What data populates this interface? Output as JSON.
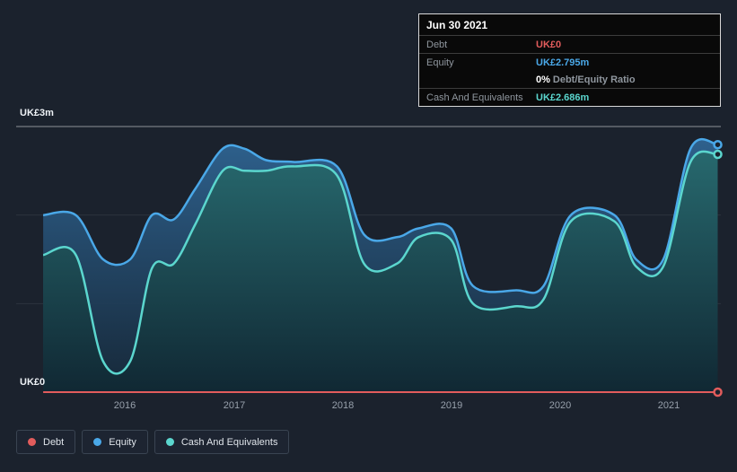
{
  "tooltip": {
    "date": "Jun 30 2021",
    "rows": [
      {
        "label": "Debt",
        "value": "UK£0",
        "color": "#e25c5c"
      },
      {
        "label": "Equity",
        "value": "UK£2.795m",
        "color": "#4aa8e8"
      },
      {
        "label": "",
        "value": "0%",
        "suffix": "Debt/Equity Ratio",
        "color": "#ffffff"
      },
      {
        "label": "Cash And Equivalents",
        "value": "UK£2.686m",
        "color": "#5bd6ce"
      }
    ]
  },
  "axes": {
    "y_top": "UK£3m",
    "y_bottom": "UK£0",
    "x_ticks": [
      "2016",
      "2017",
      "2018",
      "2019",
      "2020",
      "2021"
    ]
  },
  "legend": [
    {
      "label": "Debt",
      "color": "#e25c5c"
    },
    {
      "label": "Equity",
      "color": "#4aa8e8"
    },
    {
      "label": "Cash And Equivalents",
      "color": "#5bd6ce"
    }
  ],
  "chart_data": {
    "type": "area",
    "unit": "UK£ millions",
    "xlabel": "Year",
    "ylabel": "UK£m",
    "ylim": [
      0,
      3
    ],
    "gridlines": [
      1,
      2,
      3
    ],
    "legend_position": "bottom-left",
    "x": [
      2015.25,
      2015.55,
      2015.8,
      2016.05,
      2016.25,
      2016.45,
      2016.65,
      2016.9,
      2017.1,
      2017.3,
      2017.55,
      2017.95,
      2018.2,
      2018.5,
      2018.7,
      2019.0,
      2019.2,
      2019.6,
      2019.85,
      2020.1,
      2020.5,
      2020.7,
      2020.95,
      2021.2,
      2021.45
    ],
    "series": [
      {
        "name": "Debt",
        "color": "#e25c5c",
        "values": [
          0,
          0,
          0,
          0,
          0,
          0,
          0,
          0,
          0,
          0,
          0,
          0,
          0,
          0,
          0,
          0,
          0,
          0,
          0,
          0,
          0,
          0,
          0,
          0,
          0
        ]
      },
      {
        "name": "Equity",
        "color": "#4aa8e8",
        "values": [
          2.0,
          2.0,
          1.5,
          1.5,
          2.0,
          1.95,
          2.3,
          2.75,
          2.75,
          2.62,
          2.6,
          2.55,
          1.78,
          1.75,
          1.85,
          1.85,
          1.2,
          1.15,
          1.2,
          2.0,
          2.0,
          1.5,
          1.5,
          2.75,
          2.795
        ]
      },
      {
        "name": "Cash And Equivalents",
        "color": "#5bd6ce",
        "values": [
          1.55,
          1.55,
          0.35,
          0.35,
          1.4,
          1.45,
          1.9,
          2.5,
          2.5,
          2.5,
          2.55,
          2.45,
          1.45,
          1.45,
          1.75,
          1.72,
          1.0,
          0.97,
          1.05,
          1.93,
          1.93,
          1.42,
          1.42,
          2.6,
          2.686
        ]
      }
    ],
    "annotations": {
      "latest": {
        "date": "Jun 30 2021",
        "Debt": 0,
        "Equity": 2.795,
        "Cash And Equivalents": 2.686,
        "debt_equity_ratio_pct": 0
      }
    }
  }
}
